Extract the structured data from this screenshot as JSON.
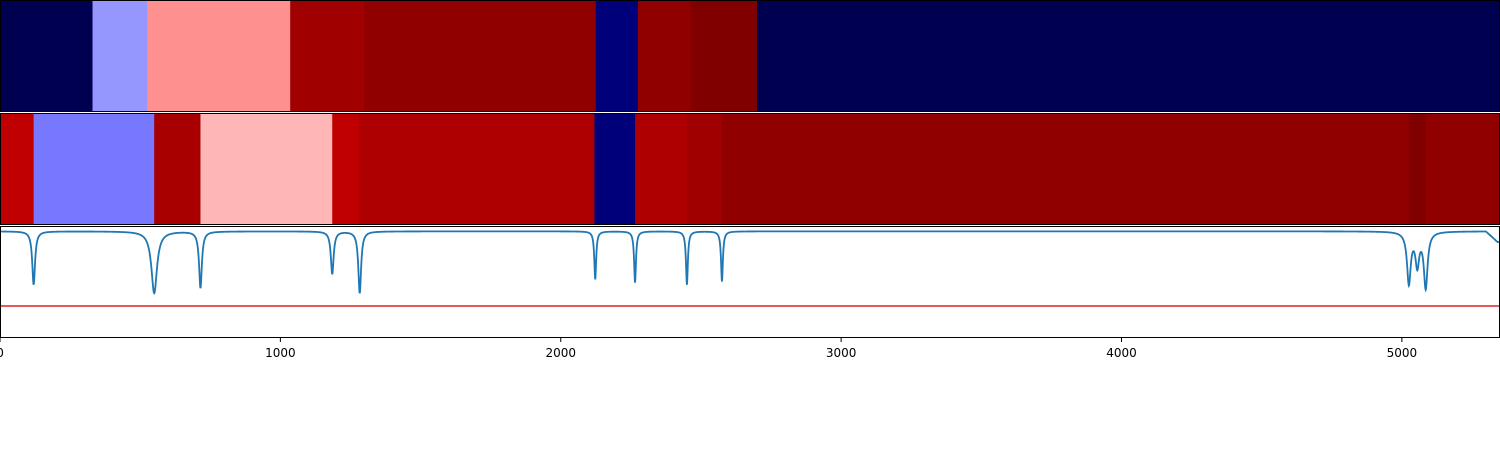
{
  "chart_data": [
    {
      "type": "heatmap",
      "name": "",
      "x_range": [
        0,
        5350
      ],
      "segments": [
        {
          "start": 0,
          "end": 330,
          "color": "#000050"
        },
        {
          "start": 330,
          "end": 525,
          "color": "#9696ff"
        },
        {
          "start": 525,
          "end": 1035,
          "color": "#ff9090"
        },
        {
          "start": 1035,
          "end": 1300,
          "color": "#a00000"
        },
        {
          "start": 1300,
          "end": 2125,
          "color": "#900000"
        },
        {
          "start": 2125,
          "end": 2275,
          "color": "#00007a"
        },
        {
          "start": 2275,
          "end": 2465,
          "color": "#900000"
        },
        {
          "start": 2465,
          "end": 2700,
          "color": "#800000"
        },
        {
          "start": 2700,
          "end": 5350,
          "color": "#000050"
        }
      ]
    },
    {
      "type": "heatmap",
      "name": "",
      "x_range": [
        0,
        5350
      ],
      "segments": [
        {
          "start": 0,
          "end": 120,
          "color": "#c00000"
        },
        {
          "start": 120,
          "end": 550,
          "color": "#7878ff"
        },
        {
          "start": 550,
          "end": 715,
          "color": "#a80000"
        },
        {
          "start": 715,
          "end": 1185,
          "color": "#ffb6b6"
        },
        {
          "start": 1185,
          "end": 1280,
          "color": "#c00000"
        },
        {
          "start": 1280,
          "end": 2120,
          "color": "#ae0000"
        },
        {
          "start": 2120,
          "end": 2265,
          "color": "#00007a"
        },
        {
          "start": 2265,
          "end": 2450,
          "color": "#ae0000"
        },
        {
          "start": 2450,
          "end": 2575,
          "color": "#a00000"
        },
        {
          "start": 2575,
          "end": 5025,
          "color": "#900000"
        },
        {
          "start": 5025,
          "end": 5085,
          "color": "#800000"
        },
        {
          "start": 5085,
          "end": 5350,
          "color": "#900000"
        }
      ]
    },
    {
      "type": "line",
      "x_range": [
        0,
        5350
      ],
      "y_range": [
        -1.0,
        0.05
      ],
      "grid": false,
      "threshold": {
        "value": -0.7,
        "color": "#e02020"
      },
      "series_color": "#1f77b4",
      "baseline": 0.0,
      "dips": [
        {
          "x": 120,
          "depth": -0.5,
          "width": 6
        },
        {
          "x": 550,
          "depth": -0.58,
          "width": 12
        },
        {
          "x": 715,
          "depth": -0.53,
          "width": 6
        },
        {
          "x": 1185,
          "depth": -0.4,
          "width": 6
        },
        {
          "x": 1283,
          "depth": -0.58,
          "width": 6
        },
        {
          "x": 2123,
          "depth": -0.45,
          "width": 4
        },
        {
          "x": 2265,
          "depth": -0.48,
          "width": 4
        },
        {
          "x": 2450,
          "depth": -0.5,
          "width": 4
        },
        {
          "x": 2575,
          "depth": -0.47,
          "width": 4
        },
        {
          "x": 5025,
          "depth": -0.48,
          "width": 8
        },
        {
          "x": 5055,
          "depth": -0.3,
          "width": 8
        },
        {
          "x": 5085,
          "depth": -0.52,
          "width": 8
        }
      ],
      "tail": {
        "start": 5300,
        "end": 5350,
        "value": -0.1
      },
      "x_ticks": [
        0,
        1000,
        2000,
        3000,
        4000,
        5000
      ],
      "x_tick_labels": [
        "0",
        "1000",
        "2000",
        "3000",
        "4000",
        "5000"
      ]
    }
  ]
}
